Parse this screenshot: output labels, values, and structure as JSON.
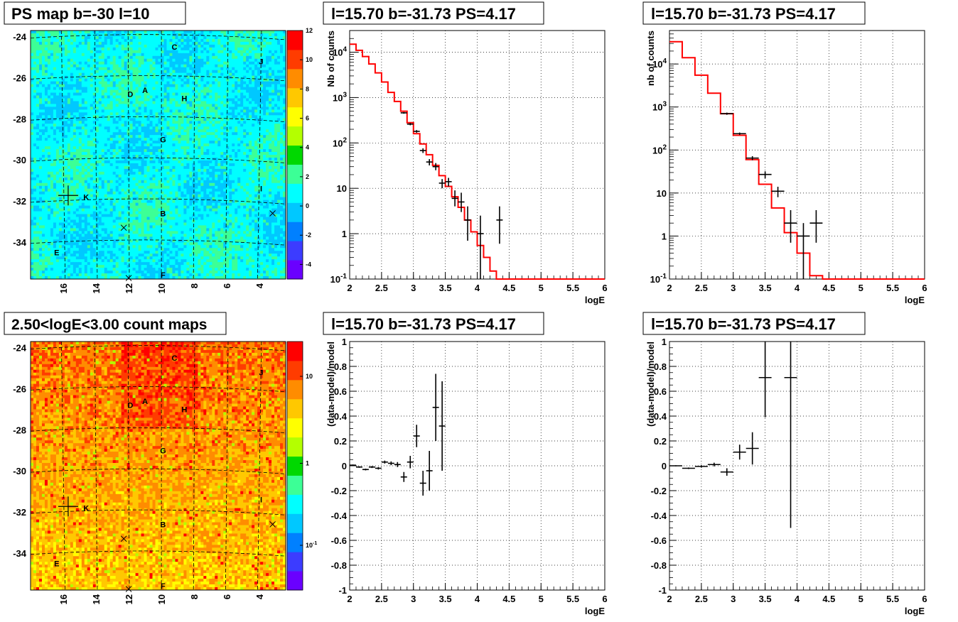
{
  "colors": {
    "model_line": "#ff0000",
    "data_points": "#000000",
    "grid": "#000000",
    "map_palette": [
      "#6a00ff",
      "#3c3cff",
      "#0080ff",
      "#00c8ff",
      "#00ffff",
      "#3cff96",
      "#00d800",
      "#b4ff00",
      "#ffff00",
      "#ffc800",
      "#ff8c00",
      "#ff3c00",
      "#ff0000"
    ]
  },
  "panels": {
    "map_ps": {
      "title": "PS map b=-30 l=10"
    },
    "map_counts": {
      "title": "2.50<logE<3.00 count maps"
    },
    "spec_left": {
      "title": "l=15.70 b=-31.73 PS=4.17"
    },
    "spec_right": {
      "title": "l=15.70 b=-31.73 PS=4.17"
    },
    "res_left": {
      "title": "l=15.70 b=-31.73 PS=4.17"
    },
    "res_right": {
      "title": "l=15.70 b=-31.73 PS=4.17"
    }
  },
  "chart_data": [
    {
      "type": "heatmap",
      "id": "map_ps",
      "title": "PS map b=-30 l=10",
      "xlabels": [
        "16",
        "14",
        "12",
        "10",
        "8",
        "6",
        "4"
      ],
      "ylabels": [
        "-24",
        "-26",
        "-28",
        "-30",
        "-32",
        "-34"
      ],
      "zticks": [
        "-4",
        "-2",
        "0",
        "2",
        "4",
        "6",
        "8",
        "10",
        "12"
      ],
      "zlim": [
        -5,
        12
      ],
      "source_labels": [
        {
          "text": "C",
          "l": 9.2,
          "b": -24.5
        },
        {
          "text": "J",
          "l": 3.9,
          "b": -25.2
        },
        {
          "text": "D",
          "l": 11.9,
          "b": -26.8
        },
        {
          "text": "A",
          "l": 11.0,
          "b": -26.6
        },
        {
          "text": "H",
          "l": 8.6,
          "b": -27.0
        },
        {
          "text": "G",
          "l": 9.9,
          "b": -29.0
        },
        {
          "text": "K",
          "l": 14.6,
          "b": -31.8
        },
        {
          "text": "B",
          "l": 9.9,
          "b": -32.6
        },
        {
          "text": "I",
          "l": 3.9,
          "b": -31.4
        },
        {
          "text": "E",
          "l": 16.4,
          "b": -34.5
        },
        {
          "text": "F",
          "l": 9.9,
          "b": -35.6
        }
      ]
    },
    {
      "type": "heatmap",
      "id": "map_counts",
      "title": "2.50<logE<3.00 count maps",
      "xlabels": [
        "16",
        "14",
        "12",
        "10",
        "8",
        "6",
        "4"
      ],
      "ylabels": [
        "-24",
        "-26",
        "-28",
        "-30",
        "-32",
        "-34"
      ],
      "zticks": [
        "10^-1",
        "1",
        "10"
      ],
      "zscale": "log",
      "source_labels": [
        {
          "text": "C",
          "l": 9.2,
          "b": -24.5
        },
        {
          "text": "J",
          "l": 3.9,
          "b": -25.2
        },
        {
          "text": "D",
          "l": 11.9,
          "b": -26.8
        },
        {
          "text": "A",
          "l": 11.0,
          "b": -26.6
        },
        {
          "text": "H",
          "l": 8.6,
          "b": -27.0
        },
        {
          "text": "G",
          "l": 9.9,
          "b": -29.0
        },
        {
          "text": "K",
          "l": 14.6,
          "b": -31.8
        },
        {
          "text": "B",
          "l": 9.9,
          "b": -32.6
        },
        {
          "text": "I",
          "l": 3.9,
          "b": -31.4
        },
        {
          "text": "E",
          "l": 16.4,
          "b": -34.5
        },
        {
          "text": "F",
          "l": 9.9,
          "b": -35.6
        }
      ]
    },
    {
      "type": "line",
      "id": "spec_left",
      "title": "l=15.70 b=-31.73 PS=4.17",
      "xlabel": "logE",
      "ylabel": "Nb of counts",
      "xlim": [
        2,
        6
      ],
      "ylim": [
        0.1,
        30000
      ],
      "yscale": "log",
      "grid": true,
      "xticks": [
        "2",
        "2.5",
        "3",
        "3.5",
        "4",
        "4.5",
        "5",
        "5.5",
        "6"
      ],
      "yticks": [
        "10^-1",
        "1",
        "10",
        "10^2",
        "10^3",
        "10^4"
      ],
      "model_step": [
        [
          2.0,
          15000
        ],
        [
          2.1,
          11000
        ],
        [
          2.2,
          8000
        ],
        [
          2.3,
          5500
        ],
        [
          2.4,
          3500
        ],
        [
          2.5,
          2200
        ],
        [
          2.6,
          1300
        ],
        [
          2.7,
          820
        ],
        [
          2.8,
          500
        ],
        [
          2.9,
          280
        ],
        [
          3.0,
          160
        ],
        [
          3.1,
          95
        ],
        [
          3.2,
          55
        ],
        [
          3.3,
          32
        ],
        [
          3.4,
          19
        ],
        [
          3.5,
          11
        ],
        [
          3.6,
          6.5
        ],
        [
          3.7,
          3.8
        ],
        [
          3.8,
          2.0
        ],
        [
          3.9,
          1.1
        ],
        [
          4.0,
          0.55
        ],
        [
          4.1,
          0.3
        ],
        [
          4.2,
          0.15
        ],
        [
          4.3,
          0.1
        ],
        [
          6.0,
          0.1
        ]
      ],
      "data_points": [
        {
          "x": 2.85,
          "y": 460,
          "yerr": [
            440,
            480
          ]
        },
        {
          "x": 2.95,
          "y": 260,
          "yerr": [
            245,
            275
          ]
        },
        {
          "x": 3.05,
          "y": 180,
          "yerr": [
            168,
            192
          ]
        },
        {
          "x": 3.15,
          "y": 68,
          "yerr": [
            60,
            76
          ]
        },
        {
          "x": 3.25,
          "y": 38,
          "yerr": [
            32,
            44
          ]
        },
        {
          "x": 3.35,
          "y": 30,
          "yerr": [
            25,
            36
          ]
        },
        {
          "x": 3.45,
          "y": 13,
          "yerr": [
            10,
            16
          ]
        },
        {
          "x": 3.55,
          "y": 14,
          "yerr": [
            11,
            17
          ]
        },
        {
          "x": 3.65,
          "y": 6,
          "yerr": [
            4,
            9
          ]
        },
        {
          "x": 3.75,
          "y": 5,
          "yerr": [
            3,
            8
          ]
        },
        {
          "x": 3.85,
          "y": 2,
          "yerr": [
            0.7,
            4
          ]
        },
        {
          "x": 4.05,
          "y": 1,
          "yerr": [
            0.1,
            2.5
          ]
        },
        {
          "x": 4.35,
          "y": 2,
          "yerr": [
            0.6,
            4
          ]
        }
      ]
    },
    {
      "type": "line",
      "id": "spec_right",
      "title": "l=15.70 b=-31.73 PS=4.17",
      "xlabel": "logE",
      "ylabel": "nb of counts",
      "xlim": [
        2,
        6
      ],
      "ylim": [
        0.1,
        60000
      ],
      "yscale": "log",
      "grid": true,
      "xticks": [
        "2",
        "2.5",
        "3",
        "3.5",
        "4",
        "4.5",
        "5",
        "5.5",
        "6"
      ],
      "yticks": [
        "10^-1",
        "1",
        "10",
        "10^2",
        "10^3",
        "10^4"
      ],
      "model_step": [
        [
          2.0,
          33000
        ],
        [
          2.2,
          14000
        ],
        [
          2.4,
          5500
        ],
        [
          2.6,
          2100
        ],
        [
          2.8,
          700
        ],
        [
          3.0,
          220
        ],
        [
          3.2,
          60
        ],
        [
          3.4,
          16
        ],
        [
          3.6,
          4.5
        ],
        [
          3.8,
          1.2
        ],
        [
          4.0,
          0.4
        ],
        [
          4.2,
          0.12
        ],
        [
          4.4,
          0.1
        ],
        [
          6.0,
          0.1
        ]
      ],
      "data_points": [
        {
          "x": 2.9,
          "y": 700,
          "yerr": [
            660,
            740
          ]
        },
        {
          "x": 3.1,
          "y": 240,
          "yerr": [
            225,
            255
          ]
        },
        {
          "x": 3.3,
          "y": 65,
          "yerr": [
            58,
            72
          ]
        },
        {
          "x": 3.5,
          "y": 27,
          "yerr": [
            22,
            32
          ]
        },
        {
          "x": 3.7,
          "y": 11,
          "yerr": [
            8,
            14
          ]
        },
        {
          "x": 3.9,
          "y": 2,
          "yerr": [
            0.7,
            4
          ]
        },
        {
          "x": 4.1,
          "y": 1,
          "yerr": [
            0.1,
            2
          ]
        },
        {
          "x": 4.3,
          "y": 2,
          "yerr": [
            0.7,
            4
          ]
        }
      ]
    },
    {
      "type": "scatter",
      "id": "res_left",
      "title": "l=15.70 b=-31.73 PS=4.17",
      "xlabel": "logE",
      "ylabel": "(data-model)/model",
      "xlim": [
        2,
        6
      ],
      "ylim": [
        -1,
        1
      ],
      "grid": true,
      "xticks": [
        "2",
        "2.5",
        "3",
        "3.5",
        "4",
        "4.5",
        "5",
        "5.5",
        "6"
      ],
      "yticks": [
        "-1",
        "-0.8",
        "-0.6",
        "-0.4",
        "-0.2",
        "0",
        "0.2",
        "0.4",
        "0.6",
        "0.8",
        "1"
      ],
      "data_points": [
        {
          "x": 2.05,
          "y": 0.005,
          "yerr": 0.005
        },
        {
          "x": 2.15,
          "y": -0.01,
          "yerr": 0.006
        },
        {
          "x": 2.25,
          "y": -0.03,
          "yerr": 0.007
        },
        {
          "x": 2.35,
          "y": -0.01,
          "yerr": 0.008
        },
        {
          "x": 2.45,
          "y": -0.02,
          "yerr": 0.01
        },
        {
          "x": 2.55,
          "y": 0.03,
          "yerr": 0.012
        },
        {
          "x": 2.65,
          "y": 0.02,
          "yerr": 0.015
        },
        {
          "x": 2.75,
          "y": 0.01,
          "yerr": 0.02
        },
        {
          "x": 2.85,
          "y": -0.09,
          "yerr": 0.04
        },
        {
          "x": 2.95,
          "y": 0.03,
          "yerr": 0.05
        },
        {
          "x": 3.05,
          "y": 0.24,
          "yerr": 0.09
        },
        {
          "x": 3.15,
          "y": -0.14,
          "yerr": 0.1
        },
        {
          "x": 3.25,
          "y": -0.04,
          "yerr": 0.16
        },
        {
          "x": 3.35,
          "y": 0.47,
          "yerr": 0.27
        },
        {
          "x": 3.45,
          "y": 0.32,
          "yerr": 0.36
        }
      ]
    },
    {
      "type": "scatter",
      "id": "res_right",
      "title": "l=15.70 b=-31.73 PS=4.17",
      "xlabel": "logE",
      "ylabel": "(data-model)/model",
      "xlim": [
        2,
        6
      ],
      "ylim": [
        -1,
        1
      ],
      "grid": true,
      "xticks": [
        "2",
        "2.5",
        "3",
        "3.5",
        "4",
        "4.5",
        "5",
        "5.5",
        "6"
      ],
      "yticks": [
        "-1",
        "-0.8",
        "-0.6",
        "-0.4",
        "-0.2",
        "0",
        "0.2",
        "0.4",
        "0.6",
        "0.8",
        "1"
      ],
      "data_points": [
        {
          "x": 2.1,
          "y": 0.0,
          "yerr": 0.004
        },
        {
          "x": 2.3,
          "y": -0.02,
          "yerr": 0.006
        },
        {
          "x": 2.5,
          "y": -0.005,
          "yerr": 0.01
        },
        {
          "x": 2.7,
          "y": 0.01,
          "yerr": 0.015
        },
        {
          "x": 2.9,
          "y": -0.05,
          "yerr": 0.03
        },
        {
          "x": 3.1,
          "y": 0.11,
          "yerr": 0.06
        },
        {
          "x": 3.3,
          "y": 0.14,
          "yerr": 0.13
        },
        {
          "x": 3.5,
          "y": 0.71,
          "yerr": 0.32
        },
        {
          "x": 3.9,
          "y": 0.71,
          "yerr": 1.21
        }
      ]
    }
  ]
}
